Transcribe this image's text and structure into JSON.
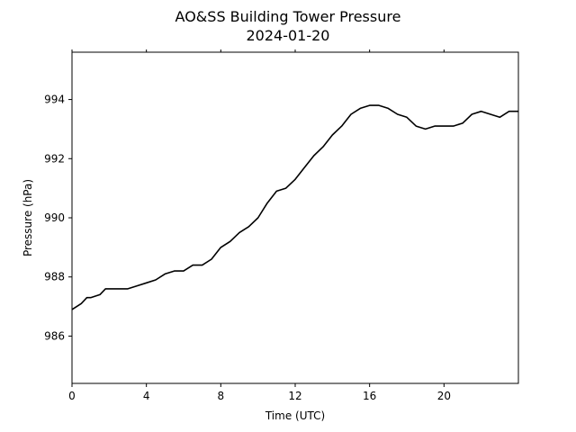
{
  "chart_data": {
    "type": "line",
    "title": "AO&SS Building Tower Pressure",
    "subtitle": "2024-01-20",
    "xlabel": "Time (UTC)",
    "ylabel": "Pressure (hPa)",
    "xlim": [
      0,
      24
    ],
    "ylim": [
      984.4,
      995.6
    ],
    "xticks": [
      0,
      4,
      8,
      12,
      16,
      20
    ],
    "xtick_labels": [
      "0",
      "4",
      "8",
      "12",
      "16",
      "20"
    ],
    "yticks": [
      986,
      988,
      990,
      992,
      994
    ],
    "ytick_labels": [
      "986",
      "988",
      "990",
      "992",
      "994"
    ],
    "grid": false,
    "line_color": "#000000",
    "series": [
      {
        "x": [
          0,
          0.5,
          0.8,
          1.0,
          1.5,
          1.8,
          2.5,
          3.0,
          3.5,
          4.0,
          4.5,
          5.0,
          5.5,
          6.0,
          6.5,
          7.0,
          7.5,
          8.0,
          8.5,
          9.0,
          9.5,
          10.0,
          10.5,
          11.0,
          11.5,
          12.0,
          12.5,
          13.0,
          13.5,
          14.0,
          14.5,
          15.0,
          15.5,
          16.0,
          16.5,
          17.0,
          17.5,
          18.0,
          18.5,
          19.0,
          19.5,
          20.0,
          20.5,
          21.0,
          21.5,
          22.0,
          22.5,
          23.0,
          23.5,
          24.0
        ],
        "y": [
          986.9,
          987.1,
          987.3,
          987.3,
          987.4,
          987.6,
          987.6,
          987.6,
          987.7,
          987.8,
          987.9,
          988.1,
          988.2,
          988.2,
          988.4,
          988.4,
          988.6,
          989.0,
          989.2,
          989.5,
          989.7,
          990.0,
          990.5,
          990.9,
          991.0,
          991.3,
          991.7,
          992.1,
          992.4,
          992.8,
          993.1,
          993.5,
          993.7,
          993.8,
          993.8,
          993.7,
          993.5,
          993.4,
          993.1,
          993.0,
          993.1,
          993.1,
          993.1,
          993.2,
          993.5,
          993.6,
          993.5,
          993.4,
          993.6,
          993.6
        ]
      }
    ]
  }
}
